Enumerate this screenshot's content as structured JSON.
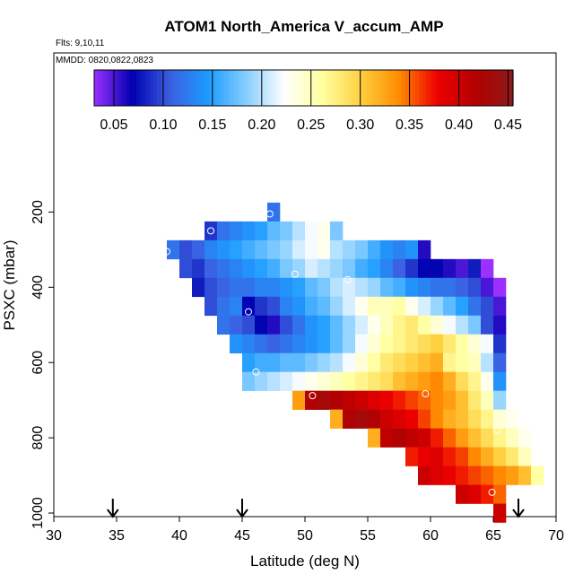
{
  "chart_data": {
    "type": "heatmap",
    "title": "ATOM1 North_America V_accum_AMP",
    "subtitle_flights": "Flts: 9,10,11",
    "subtitle_dates": "MMDD: 0820,0822,0823",
    "xlabel": "Latitude (deg N)",
    "ylabel": "PSXC (mbar)",
    "xlim": [
      30,
      70
    ],
    "ylim": [
      1000,
      0
    ],
    "x_ticks": [
      "30",
      "35",
      "40",
      "45",
      "50",
      "55",
      "60",
      "65",
      "70"
    ],
    "y_ticks": [
      "200",
      "400",
      "600",
      "800",
      "1000"
    ],
    "colorbar": {
      "range": [
        0.03,
        0.455
      ],
      "tick_labels": [
        "0.05",
        "0.10",
        "0.15",
        "0.20",
        "0.25",
        "0.30",
        "0.35",
        "0.40",
        "0.45"
      ],
      "tick_values": [
        0.05,
        0.1,
        0.15,
        0.2,
        0.25,
        0.3,
        0.35,
        0.4,
        0.45
      ]
    },
    "cell_size": {
      "lat_deg": 1,
      "pressure_mbar": 50
    },
    "rows": [
      {
        "p": 200,
        "lat0": 47,
        "values": [
          0.12
        ]
      },
      {
        "p": 250,
        "lat0": 42,
        "values": [
          0.09,
          0.12,
          0.13,
          0.14,
          0.15,
          0.17,
          0.18,
          0.2,
          0.22,
          0.23,
          0.18
        ]
      },
      {
        "p": 300,
        "lat0": 39,
        "values": [
          0.12,
          0.1,
          0.11,
          0.13,
          0.14,
          0.15,
          0.16,
          0.17,
          0.18,
          0.19,
          0.21,
          0.22,
          0.23,
          0.2,
          0.19,
          0.18,
          0.16,
          0.14,
          0.13,
          0.14,
          0.06
        ]
      },
      {
        "p": 350,
        "lat0": 40,
        "values": [
          0.1,
          0.09,
          0.11,
          0.12,
          0.13,
          0.14,
          0.15,
          0.16,
          0.18,
          0.19,
          0.21,
          0.2,
          0.19,
          0.18,
          0.16,
          0.15,
          0.13,
          0.11,
          0.09,
          0.07,
          0.07,
          0.06,
          0.05,
          0.08,
          0.02
        ]
      },
      {
        "p": 400,
        "lat0": 41,
        "values": [
          0.08,
          0.1,
          0.11,
          0.12,
          0.12,
          0.13,
          0.13,
          0.14,
          0.15,
          0.17,
          0.18,
          0.2,
          0.21,
          0.2,
          0.19,
          0.17,
          0.16,
          0.14,
          0.13,
          0.12,
          0.12,
          0.11,
          0.1,
          0.05,
          0.03
        ]
      },
      {
        "p": 450,
        "lat0": 42,
        "values": [
          0.1,
          0.12,
          0.13,
          0.07,
          0.09,
          0.1,
          0.13,
          0.14,
          0.16,
          0.17,
          0.19,
          0.21,
          0.23,
          0.25,
          0.25,
          0.26,
          0.23,
          0.21,
          0.19,
          0.17,
          0.15,
          0.12,
          0.1,
          0.05
        ]
      },
      {
        "p": 500,
        "lat0": 43,
        "values": [
          0.12,
          0.11,
          0.1,
          0.07,
          0.06,
          0.1,
          0.12,
          0.14,
          0.15,
          0.17,
          0.19,
          0.21,
          0.23,
          0.25,
          0.27,
          0.28,
          0.26,
          0.24,
          0.22,
          0.2,
          0.18,
          0.1,
          0.06
        ]
      },
      {
        "p": 550,
        "lat0": 44,
        "values": [
          0.14,
          0.13,
          0.12,
          0.11,
          0.12,
          0.13,
          0.14,
          0.15,
          0.17,
          0.19,
          0.22,
          0.24,
          0.26,
          0.27,
          0.28,
          0.29,
          0.3,
          0.28,
          0.26,
          0.24,
          0.22,
          0.09
        ]
      },
      {
        "p": 600,
        "lat0": 45,
        "values": [
          0.15,
          0.16,
          0.16,
          0.17,
          0.17,
          0.18,
          0.19,
          0.2,
          0.22,
          0.24,
          0.26,
          0.28,
          0.29,
          0.3,
          0.31,
          0.32,
          0.27,
          0.26,
          0.25,
          0.2,
          0.11
        ]
      },
      {
        "p": 650,
        "lat0": 45,
        "values": [
          0.18,
          0.19,
          0.2,
          0.21,
          0.22,
          0.23,
          0.24,
          0.25,
          0.26,
          0.27,
          0.28,
          0.29,
          0.31,
          0.32,
          0.33,
          0.34,
          0.32,
          0.29,
          0.27,
          0.23,
          0.14
        ]
      },
      {
        "p": 700,
        "lat0": 49,
        "values": [
          0.33,
          0.42,
          0.43,
          0.42,
          0.41,
          0.4,
          0.39,
          0.38,
          0.37,
          0.36,
          0.35,
          0.34,
          0.33,
          0.31,
          0.28,
          0.25,
          0.19
        ]
      },
      {
        "p": 750,
        "lat0": 52,
        "values": [
          0.32,
          0.42,
          0.43,
          0.42,
          0.4,
          0.39,
          0.38,
          0.36,
          0.34,
          0.32,
          0.31,
          0.29,
          0.27,
          0.24,
          0.23
        ]
      },
      {
        "p": 800,
        "lat0": 55,
        "values": [
          0.32,
          0.41,
          0.42,
          0.41,
          0.4,
          0.37,
          0.35,
          0.33,
          0.31,
          0.29,
          0.27,
          0.25,
          0.23
        ]
      },
      {
        "p": 850,
        "lat0": 58,
        "values": [
          0.37,
          0.38,
          0.39,
          0.37,
          0.36,
          0.34,
          0.32,
          0.3,
          0.28,
          0.25
        ]
      },
      {
        "p": 900,
        "lat0": 59,
        "values": [
          0.4,
          0.39,
          0.38,
          0.37,
          0.36,
          0.35,
          0.34,
          0.33,
          0.31,
          0.26
        ]
      },
      {
        "p": 950,
        "lat0": 62,
        "values": [
          0.4,
          0.39,
          0.37,
          0.35
        ]
      },
      {
        "p": 1000,
        "lat0": 65,
        "values": [
          0.4
        ]
      }
    ],
    "markers": [
      {
        "lat": 47.2,
        "p": 205
      },
      {
        "lat": 42.5,
        "p": 250
      },
      {
        "lat": 39.0,
        "p": 305
      },
      {
        "lat": 49.2,
        "p": 365
      },
      {
        "lat": 53.4,
        "p": 380
      },
      {
        "lat": 65.9,
        "p": 360
      },
      {
        "lat": 45.5,
        "p": 465
      },
      {
        "lat": 46.1,
        "p": 625
      },
      {
        "lat": 50.6,
        "p": 688
      },
      {
        "lat": 59.6,
        "p": 683
      },
      {
        "lat": 65.3,
        "p": 780
      },
      {
        "lat": 64.9,
        "p": 945
      }
    ],
    "arrows": [
      {
        "lat": 34.7
      },
      {
        "lat": 45.0
      },
      {
        "lat": 67.0
      }
    ],
    "colors": {
      "stops": [
        "#9b30ff",
        "#0000b0",
        "#3b5fe0",
        "#1c9cff",
        "#87ceff",
        "#ffffff",
        "#ffffa0",
        "#ffd040",
        "#ff8c00",
        "#ee0000",
        "#b40000",
        "#8b1a1a"
      ],
      "marker": "#ffffff",
      "frame": "#000000"
    }
  }
}
